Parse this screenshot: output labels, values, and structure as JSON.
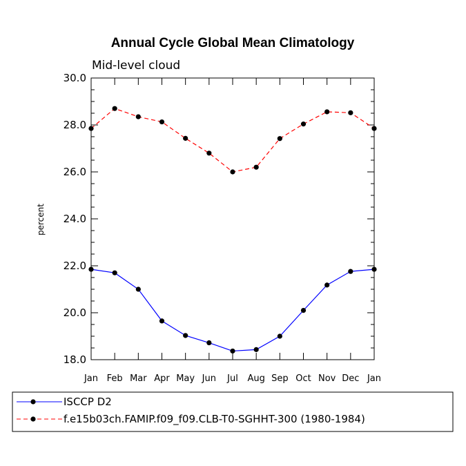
{
  "chart_data": {
    "type": "line",
    "title": "Annual Cycle Global Mean Climatology",
    "subtitle": "Mid-level cloud",
    "xlabel": "",
    "ylabel": "percent",
    "categories": [
      "Jan",
      "Feb",
      "Mar",
      "Apr",
      "May",
      "Jun",
      "Jul",
      "Aug",
      "Sep",
      "Oct",
      "Nov",
      "Dec",
      "Jan"
    ],
    "ylim": [
      18.0,
      30.0
    ],
    "yticks": [
      "18.0",
      "20.0",
      "22.0",
      "24.0",
      "26.0",
      "28.0",
      "30.0"
    ],
    "legend_position": "bottom",
    "grid": false,
    "series": [
      {
        "name": "ISCCP D2",
        "color": "#0000ff",
        "line_style": "solid",
        "marker": "filled-circle",
        "values": [
          21.85,
          21.7,
          21.0,
          19.65,
          19.03,
          18.72,
          18.37,
          18.43,
          19.0,
          20.1,
          21.18,
          21.76,
          21.85
        ]
      },
      {
        "name": "f.e15b03ch.FAMIP.f09_f09.CLB-T0-SGHHT-300 (1980-1984)",
        "color": "#ff0000",
        "line_style": "dashed",
        "marker": "filled-circle",
        "values": [
          27.85,
          28.7,
          28.35,
          28.13,
          27.43,
          26.8,
          26.0,
          26.2,
          27.42,
          28.04,
          28.56,
          28.52,
          27.85
        ]
      }
    ]
  }
}
